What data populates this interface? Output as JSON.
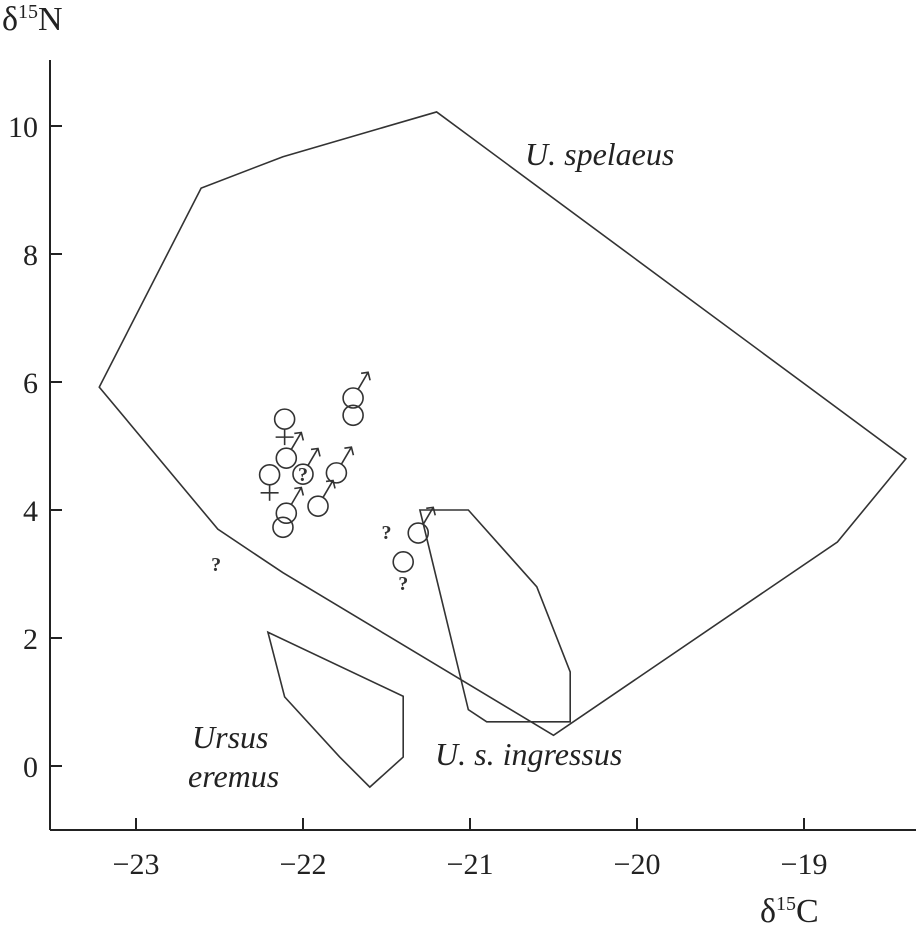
{
  "chart_data": {
    "type": "scatter",
    "title": "",
    "xlabel": "δ15C",
    "xlabel_main": "δ",
    "xlabel_sup": "15",
    "xlabel_elem": "C",
    "ylabel_main": "δ",
    "ylabel_sup": "15",
    "ylabel_elem": "N",
    "xlim": [
      -23.5,
      -18.33
    ],
    "ylim": [
      -1.0,
      11.0
    ],
    "grid": false,
    "xticks": [
      -23,
      -22,
      -21,
      -20,
      -19
    ],
    "xtick_labels": [
      "−23",
      "−22",
      "−21",
      "−20",
      "−19"
    ],
    "yticks": [
      0,
      2,
      4,
      6,
      8,
      10
    ],
    "ytick_labels": [
      "0",
      "2",
      "4",
      "6",
      "8",
      "10"
    ],
    "regions": [
      {
        "name": "U. spelaeus",
        "label_lines": [
          "U. spelaeus"
        ],
        "points": [
          [
            -23.22,
            5.92
          ],
          [
            -22.61,
            9.03
          ],
          [
            -22.12,
            9.52
          ],
          [
            -21.2,
            10.22
          ],
          [
            -18.39,
            4.8
          ],
          [
            -18.8,
            3.5
          ],
          [
            -20.5,
            0.48
          ],
          [
            -22.12,
            3.02
          ],
          [
            -22.51,
            3.7
          ]
        ]
      },
      {
        "name": "U. s. ingressus",
        "label_lines": [
          "U. s. ingressus"
        ],
        "points": [
          [
            -21.3,
            4.0
          ],
          [
            -21.01,
            4.0
          ],
          [
            -20.6,
            2.8
          ],
          [
            -20.4,
            1.47
          ],
          [
            -20.4,
            0.69
          ],
          [
            -20.9,
            0.69
          ],
          [
            -21.01,
            0.88
          ]
        ]
      },
      {
        "name": "Ursus eremus",
        "label_lines": [
          "Ursus",
          "eremus"
        ],
        "points": [
          [
            -22.21,
            2.09
          ],
          [
            -22.11,
            1.08
          ],
          [
            -21.78,
            0.14
          ],
          [
            -21.6,
            -0.33
          ],
          [
            -21.4,
            0.14
          ],
          [
            -21.4,
            1.09
          ]
        ]
      }
    ],
    "points": [
      {
        "x": -22.11,
        "y": 5.42,
        "sex": "female"
      },
      {
        "x": -22.2,
        "y": 4.55,
        "sex": "female"
      },
      {
        "x": -22.1,
        "y": 4.81,
        "sex": "male"
      },
      {
        "x": -22.0,
        "y": 4.56,
        "sex": "male-uncertain"
      },
      {
        "x": -21.8,
        "y": 4.58,
        "sex": "male"
      },
      {
        "x": -21.91,
        "y": 4.06,
        "sex": "male"
      },
      {
        "x": -22.1,
        "y": 3.95,
        "sex": "male"
      },
      {
        "x": -22.12,
        "y": 3.73,
        "sex": "unknown"
      },
      {
        "x": -21.7,
        "y": 5.75,
        "sex": "male"
      },
      {
        "x": -21.7,
        "y": 5.48,
        "sex": "unknown"
      },
      {
        "x": -21.31,
        "y": 3.64,
        "sex": "male"
      },
      {
        "x": -21.4,
        "y": 3.19,
        "sex": "unknown-uncertain"
      },
      {
        "x": -21.5,
        "y": 3.66,
        "sex": "question"
      },
      {
        "x": -22.52,
        "y": 3.16,
        "sex": "question"
      }
    ],
    "question_mark": "?"
  }
}
